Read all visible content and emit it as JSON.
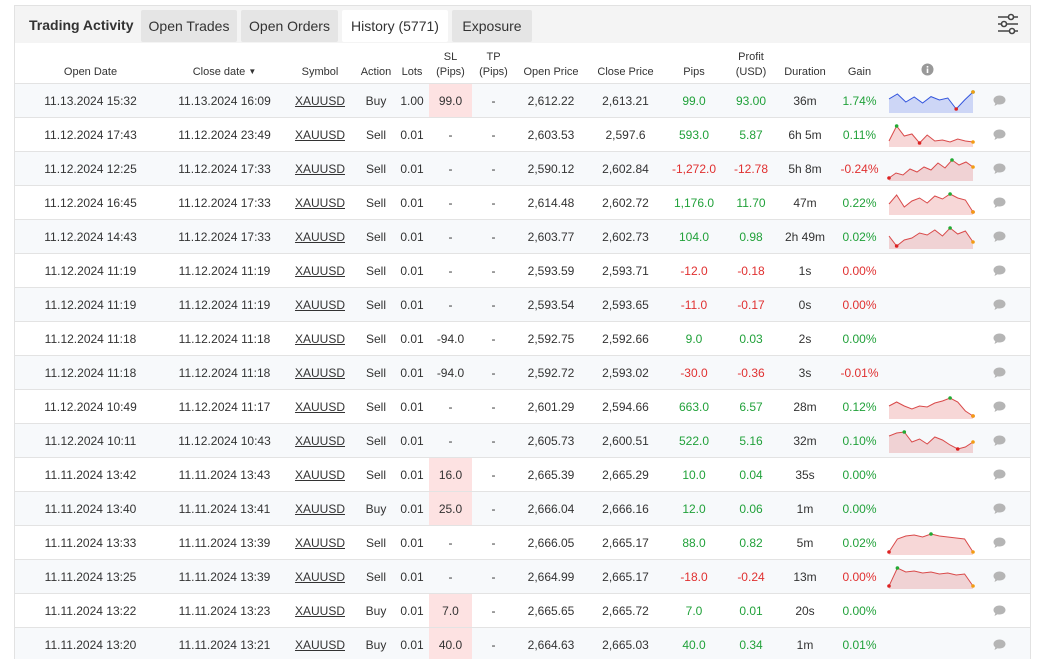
{
  "panel": {
    "title": "Trading Activity",
    "tabs": [
      {
        "label": "Open Trades"
      },
      {
        "label": "Open Orders"
      },
      {
        "label": "History (5771)"
      },
      {
        "label": "Exposure"
      }
    ],
    "active_tab": "History (5771)"
  },
  "icons": {
    "filter": "sliders-icon",
    "info": "info-icon",
    "comment": "comment-icon",
    "sort": "sort-desc-icon"
  },
  "colors": {
    "positive": "#21a13a",
    "negative": "#e03030",
    "sl_highlight": "#fde2e2",
    "spark_buy": "#3355dd",
    "spark_sell": "#d94a4a"
  },
  "columns": {
    "open_date": "Open Date",
    "close_date": "Close date",
    "sort_arrow": "▼",
    "symbol": "Symbol",
    "action": "Action",
    "lots": "Lots",
    "sl_line1": "SL",
    "sl_line2": "(Pips)",
    "tp_line1": "TP",
    "tp_line2": "(Pips)",
    "open_price": "Open Price",
    "close_price": "Close Price",
    "pips": "Pips",
    "profit_line1": "Profit",
    "profit_line2": "(USD)",
    "duration": "Duration",
    "gain": "Gain"
  },
  "rows": [
    {
      "open_date": "11.13.2024 15:32",
      "close_date": "11.13.2024 16:09",
      "symbol": "XAUUSD",
      "action": "Buy",
      "lots": "1.00",
      "sl": "99.0",
      "sl_highlight": true,
      "tp": "-",
      "open_price": "2,612.22",
      "close_price": "2,613.21",
      "pips": "99.0",
      "profit": "93.00",
      "duration": "36m",
      "gain": "1.74%",
      "sign": "pos",
      "spark": [
        0.6,
        0.85,
        0.45,
        0.7,
        0.4,
        0.72,
        0.55,
        0.65,
        0.1,
        0.55,
        0.95
      ]
    },
    {
      "open_date": "11.12.2024 17:43",
      "close_date": "11.12.2024 23:49",
      "symbol": "XAUUSD",
      "action": "Sell",
      "lots": "0.01",
      "sl": "-",
      "sl_highlight": false,
      "tp": "-",
      "open_price": "2,603.53",
      "close_price": "2,597.6",
      "pips": "593.0",
      "profit": "5.87",
      "duration": "6h 5m",
      "gain": "0.11%",
      "sign": "pos",
      "spark": [
        0.2,
        0.95,
        0.45,
        0.55,
        0.1,
        0.5,
        0.2,
        0.25,
        0.15,
        0.3,
        0.2,
        0.15
      ]
    },
    {
      "open_date": "11.12.2024 12:25",
      "close_date": "11.12.2024 17:33",
      "symbol": "XAUUSD",
      "action": "Sell",
      "lots": "0.01",
      "sl": "-",
      "sl_highlight": false,
      "tp": "-",
      "open_price": "2,590.12",
      "close_price": "2,602.84",
      "pips": "-1,272.0",
      "profit": "-12.78",
      "duration": "5h 8m",
      "gain": "-0.24%",
      "sign": "neg",
      "spark": [
        0.05,
        0.3,
        0.2,
        0.5,
        0.35,
        0.6,
        0.45,
        0.8,
        0.55,
        0.95,
        0.7,
        0.85,
        0.6
      ]
    },
    {
      "open_date": "11.12.2024 16:45",
      "close_date": "11.12.2024 17:33",
      "symbol": "XAUUSD",
      "action": "Sell",
      "lots": "0.01",
      "sl": "-",
      "sl_highlight": false,
      "tp": "-",
      "open_price": "2,614.48",
      "close_price": "2,602.72",
      "pips": "1,176.0",
      "profit": "11.70",
      "duration": "47m",
      "gain": "0.22%",
      "sign": "pos",
      "spark": [
        0.45,
        0.9,
        0.3,
        0.6,
        0.75,
        0.5,
        0.85,
        0.7,
        0.95,
        0.75,
        0.65,
        0.05
      ]
    },
    {
      "open_date": "11.12.2024 14:43",
      "close_date": "11.12.2024 17:33",
      "symbol": "XAUUSD",
      "action": "Sell",
      "lots": "0.01",
      "sl": "-",
      "sl_highlight": false,
      "tp": "-",
      "open_price": "2,603.77",
      "close_price": "2,602.73",
      "pips": "104.0",
      "profit": "0.98",
      "duration": "2h 49m",
      "gain": "0.02%",
      "sign": "pos",
      "spark": [
        0.55,
        0.05,
        0.35,
        0.45,
        0.7,
        0.6,
        0.85,
        0.55,
        0.95,
        0.65,
        0.8,
        0.25
      ]
    },
    {
      "open_date": "11.12.2024 11:19",
      "close_date": "11.12.2024 11:19",
      "symbol": "XAUUSD",
      "action": "Sell",
      "lots": "0.01",
      "sl": "-",
      "sl_highlight": false,
      "tp": "-",
      "open_price": "2,593.59",
      "close_price": "2,593.71",
      "pips": "-12.0",
      "profit": "-0.18",
      "duration": "1s",
      "gain": "0.00%",
      "sign": "neg",
      "spark": null
    },
    {
      "open_date": "11.12.2024 11:19",
      "close_date": "11.12.2024 11:19",
      "symbol": "XAUUSD",
      "action": "Sell",
      "lots": "0.01",
      "sl": "-",
      "sl_highlight": false,
      "tp": "-",
      "open_price": "2,593.54",
      "close_price": "2,593.65",
      "pips": "-11.0",
      "profit": "-0.17",
      "duration": "0s",
      "gain": "0.00%",
      "sign": "neg",
      "spark": null
    },
    {
      "open_date": "11.12.2024 11:18",
      "close_date": "11.12.2024 11:18",
      "symbol": "XAUUSD",
      "action": "Sell",
      "lots": "0.01",
      "sl": "-94.0",
      "sl_highlight": false,
      "tp": "-",
      "open_price": "2,592.75",
      "close_price": "2,592.66",
      "pips": "9.0",
      "profit": "0.03",
      "duration": "2s",
      "gain": "0.00%",
      "sign": "pos",
      "spark": null
    },
    {
      "open_date": "11.12.2024 11:18",
      "close_date": "11.12.2024 11:18",
      "symbol": "XAUUSD",
      "action": "Sell",
      "lots": "0.01",
      "sl": "-94.0",
      "sl_highlight": false,
      "tp": "-",
      "open_price": "2,592.72",
      "close_price": "2,593.02",
      "pips": "-30.0",
      "profit": "-0.36",
      "duration": "3s",
      "gain": "-0.01%",
      "sign": "neg",
      "spark": null
    },
    {
      "open_date": "11.12.2024 10:49",
      "close_date": "11.12.2024 11:17",
      "symbol": "XAUUSD",
      "action": "Sell",
      "lots": "0.01",
      "sl": "-",
      "sl_highlight": false,
      "tp": "-",
      "open_price": "2,601.29",
      "close_price": "2,594.66",
      "pips": "663.0",
      "profit": "6.57",
      "duration": "28m",
      "gain": "0.12%",
      "sign": "pos",
      "spark": [
        0.55,
        0.75,
        0.55,
        0.4,
        0.55,
        0.5,
        0.7,
        0.8,
        0.95,
        0.75,
        0.3,
        0.05
      ]
    },
    {
      "open_date": "11.12.2024 10:11",
      "close_date": "11.12.2024 10:43",
      "symbol": "XAUUSD",
      "action": "Sell",
      "lots": "0.01",
      "sl": "-",
      "sl_highlight": false,
      "tp": "-",
      "open_price": "2,605.73",
      "close_price": "2,600.51",
      "pips": "522.0",
      "profit": "5.16",
      "duration": "32m",
      "gain": "0.10%",
      "sign": "pos",
      "spark": [
        0.75,
        0.9,
        0.95,
        0.45,
        0.6,
        0.35,
        0.7,
        0.55,
        0.3,
        0.1,
        0.2,
        0.45
      ]
    },
    {
      "open_date": "11.11.2024 13:42",
      "close_date": "11.11.2024 13:43",
      "symbol": "XAUUSD",
      "action": "Sell",
      "lots": "0.01",
      "sl": "16.0",
      "sl_highlight": true,
      "tp": "-",
      "open_price": "2,665.39",
      "close_price": "2,665.29",
      "pips": "10.0",
      "profit": "0.04",
      "duration": "35s",
      "gain": "0.00%",
      "sign": "pos",
      "spark": null
    },
    {
      "open_date": "11.11.2024 13:40",
      "close_date": "11.11.2024 13:41",
      "symbol": "XAUUSD",
      "action": "Buy",
      "lots": "0.01",
      "sl": "25.0",
      "sl_highlight": true,
      "tp": "-",
      "open_price": "2,666.04",
      "close_price": "2,666.16",
      "pips": "12.0",
      "profit": "0.06",
      "duration": "1m",
      "gain": "0.00%",
      "sign": "pos",
      "spark": null
    },
    {
      "open_date": "11.11.2024 13:33",
      "close_date": "11.11.2024 13:39",
      "symbol": "XAUUSD",
      "action": "Sell",
      "lots": "0.01",
      "sl": "-",
      "sl_highlight": false,
      "tp": "-",
      "open_price": "2,666.05",
      "close_price": "2,665.17",
      "pips": "88.0",
      "profit": "0.82",
      "duration": "5m",
      "gain": "0.02%",
      "sign": "pos",
      "spark": [
        0.05,
        0.7,
        0.85,
        0.9,
        0.8,
        0.95,
        0.85,
        0.8,
        0.75,
        0.7,
        0.05
      ]
    },
    {
      "open_date": "11.11.2024 13:25",
      "close_date": "11.11.2024 13:39",
      "symbol": "XAUUSD",
      "action": "Sell",
      "lots": "0.01",
      "sl": "-",
      "sl_highlight": false,
      "tp": "-",
      "open_price": "2,664.99",
      "close_price": "2,665.17",
      "pips": "-18.0",
      "profit": "-0.24",
      "duration": "13m",
      "gain": "0.00%",
      "sign": "neg",
      "spark": [
        0.05,
        0.95,
        0.75,
        0.8,
        0.7,
        0.75,
        0.65,
        0.7,
        0.6,
        0.65,
        0.05
      ]
    },
    {
      "open_date": "11.11.2024 13:22",
      "close_date": "11.11.2024 13:23",
      "symbol": "XAUUSD",
      "action": "Buy",
      "lots": "0.01",
      "sl": "7.0",
      "sl_highlight": true,
      "tp": "-",
      "open_price": "2,665.65",
      "close_price": "2,665.72",
      "pips": "7.0",
      "profit": "0.01",
      "duration": "20s",
      "gain": "0.00%",
      "sign": "pos",
      "spark": null
    },
    {
      "open_date": "11.11.2024 13:20",
      "close_date": "11.11.2024 13:21",
      "symbol": "XAUUSD",
      "action": "Buy",
      "lots": "0.01",
      "sl": "40.0",
      "sl_highlight": true,
      "tp": "-",
      "open_price": "2,664.63",
      "close_price": "2,665.03",
      "pips": "40.0",
      "profit": "0.34",
      "duration": "1m",
      "gain": "0.01%",
      "sign": "pos",
      "spark": null
    }
  ]
}
